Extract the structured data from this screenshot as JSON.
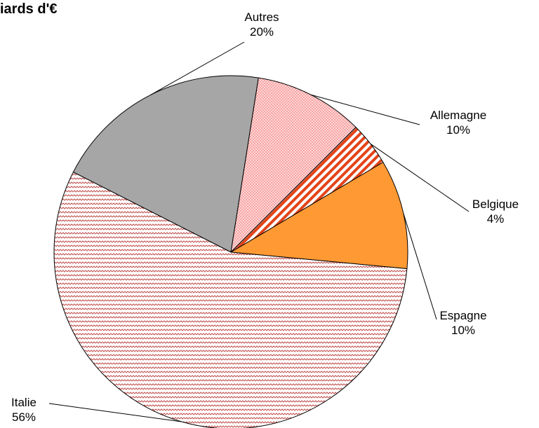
{
  "chart_data": {
    "type": "pie",
    "title": "iards d'€",
    "slices": [
      {
        "label": "Autres",
        "value": 20,
        "value_label": "20%",
        "color": "#a6a6a6",
        "pattern": "solid"
      },
      {
        "label": "Allemagne",
        "value": 10,
        "value_label": "10%",
        "color": "#f08080",
        "pattern": "dots"
      },
      {
        "label": "Belgique",
        "value": 4,
        "value_label": "4%",
        "color": "#e3441a",
        "pattern": "diagonal-stripes"
      },
      {
        "label": "Espagne",
        "value": 10,
        "value_label": "10%",
        "color": "#ff9933",
        "pattern": "solid"
      },
      {
        "label": "Italie",
        "value": 56,
        "value_label": "56%",
        "color": "#c0504d",
        "pattern": "fine-diagonal-hatch"
      }
    ]
  }
}
